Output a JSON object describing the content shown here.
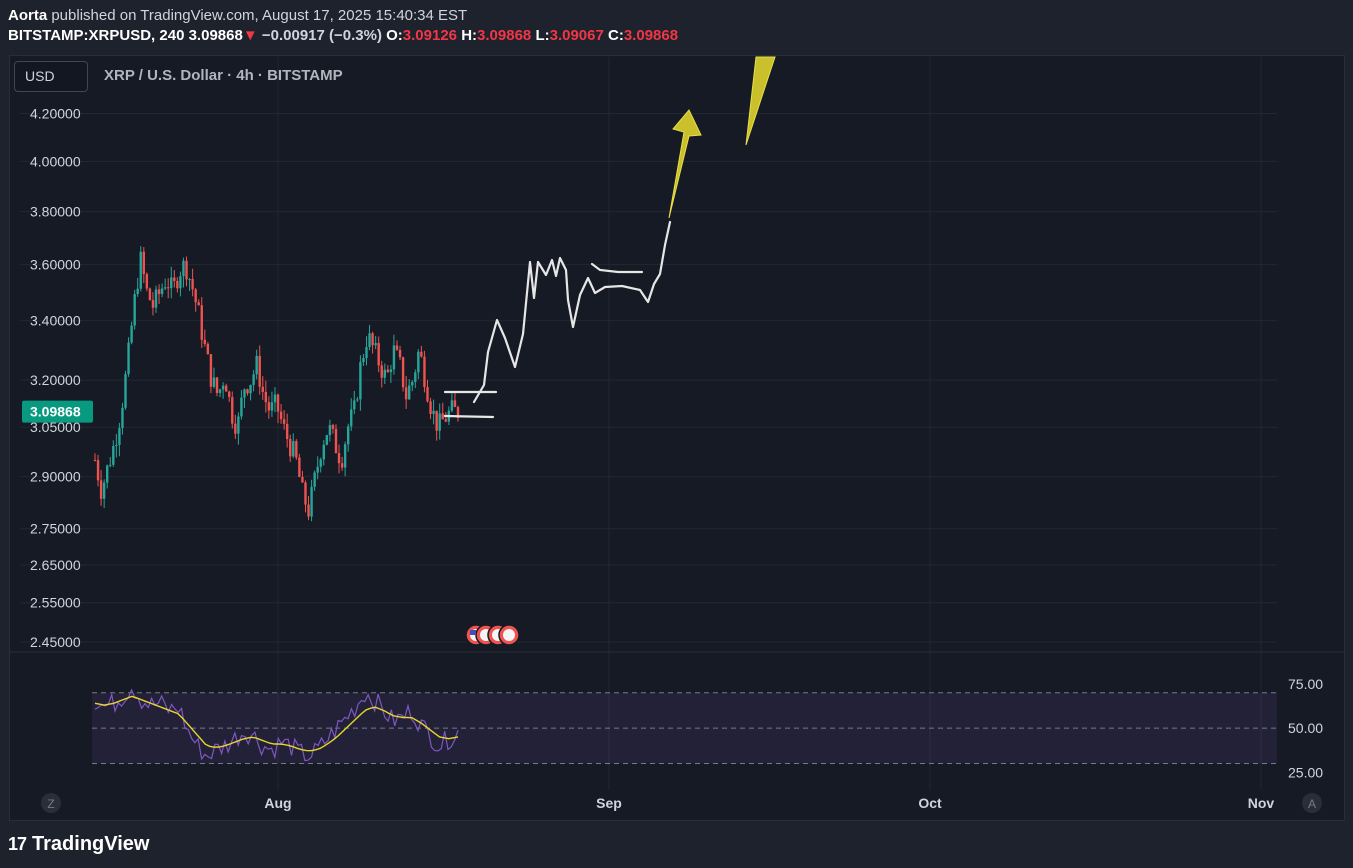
{
  "header": {
    "author": "Aorta",
    "published": "published on TradingView.com, August 17, 2025 15:40:34 EST",
    "symbol": "BITSTAMP:XRPUSD, 240",
    "last": "3.09868",
    "arrow": "▼",
    "change": "−0.00917 (−0.3%)",
    "o_label": "O:",
    "o": "3.09126",
    "h_label": "H:",
    "h": "3.09868",
    "l_label": "L:",
    "l": "3.09067",
    "c_label": "C:",
    "c": "3.09868"
  },
  "toolbar": {
    "currency": "USD"
  },
  "chart_title": "XRP / U.S. Dollar · 4h · BITSTAMP",
  "chart_data": [
    {
      "type": "candlestick",
      "title": "XRP / U.S. Dollar · 4h · BITSTAMP",
      "y_ticks": [
        "4.20000",
        "4.00000",
        "3.80000",
        "3.60000",
        "3.40000",
        "3.20000",
        "3.05000",
        "2.90000",
        "2.75000",
        "2.65000",
        "2.55000",
        "2.45000"
      ],
      "y_tick_values": [
        4.2,
        4.0,
        3.8,
        3.6,
        3.4,
        3.2,
        3.05,
        2.9,
        2.75,
        2.65,
        2.55,
        2.45
      ],
      "x_ticks": [
        "Aug",
        "Sep",
        "Oct",
        "Nov"
      ],
      "y_scale": "log",
      "ylim": [
        2.43,
        4.28
      ],
      "last_price_label": "3.09868",
      "series": [
        {
          "name": "XRPUSD",
          "note": "price path sampled (approximate closes)",
          "values": [
            2.95,
            2.86,
            2.93,
            3.0,
            3.1,
            3.25,
            3.45,
            3.62,
            3.5,
            3.45,
            3.5,
            3.55,
            3.5,
            3.58,
            3.6,
            3.52,
            3.42,
            3.3,
            3.2,
            3.15,
            3.22,
            3.1,
            3.05,
            3.18,
            3.2,
            3.25,
            3.15,
            3.1,
            3.12,
            3.05,
            3.0,
            2.95,
            2.85,
            2.8,
            2.9,
            3.0,
            3.05,
            3.0,
            2.95,
            3.05,
            3.1,
            3.25,
            3.35,
            3.3,
            3.25,
            3.2,
            3.3,
            3.25,
            3.15,
            3.2,
            3.3,
            3.2,
            3.1,
            3.05,
            3.08,
            3.1,
            3.09868
          ]
        }
      ]
    },
    {
      "type": "line",
      "title": "",
      "y_ticks": [
        "75.00",
        "50.00",
        "25.00"
      ],
      "y_tick_values": [
        75,
        50,
        25
      ],
      "ylim": [
        15,
        93
      ],
      "bands": [
        70,
        50,
        30
      ],
      "series": [
        {
          "name": "",
          "note": "oscillator (purple)",
          "values": [
            66,
            62,
            64,
            68,
            74,
            66,
            63,
            64,
            60,
            62,
            48,
            40,
            34,
            38,
            40,
            44,
            48,
            46,
            40,
            38,
            42,
            40,
            36,
            34,
            38,
            44,
            50,
            56,
            62,
            70,
            66,
            60,
            54,
            56,
            60,
            52,
            46,
            40,
            44,
            48
          ]
        },
        {
          "name": "",
          "note": "signal (yellow)",
          "values": [
            64,
            63,
            64,
            66,
            68,
            66,
            64,
            62,
            60,
            58,
            52,
            46,
            40,
            39,
            40,
            42,
            44,
            45,
            43,
            41,
            41,
            40,
            38,
            37,
            38,
            41,
            45,
            50,
            55,
            60,
            62,
            60,
            57,
            56,
            56,
            53,
            49,
            45,
            44,
            45
          ]
        }
      ]
    }
  ],
  "axis_icons": {
    "left": "Z",
    "right": "A"
  },
  "flag_icons": "us-flag-icon",
  "colors": {
    "bull": "#26a69a",
    "bear": "#ef5350",
    "projection": "#e6e6e6",
    "arrow_fill": "#c9c02c",
    "oscillator": "#7e57c2",
    "signal": "#e6d72d",
    "last_price_bg": "#089981"
  },
  "footer": {
    "brand": "TradingView",
    "logo_mark": "17"
  }
}
